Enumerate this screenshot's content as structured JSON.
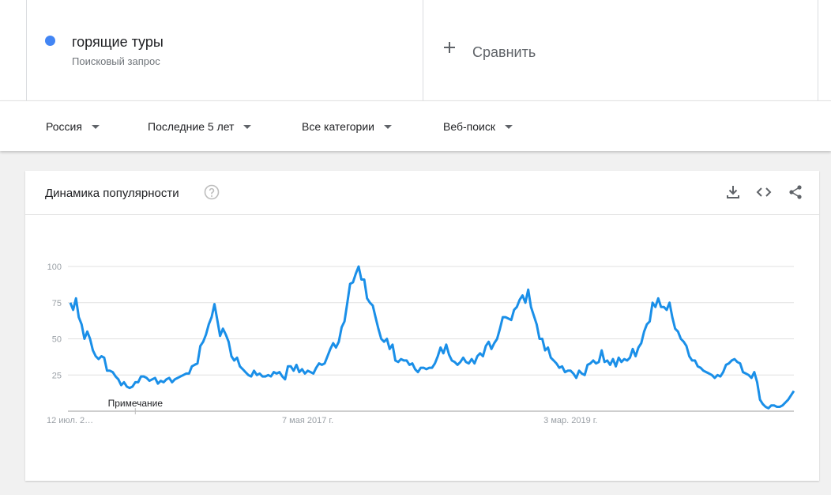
{
  "term": {
    "name": "горящие туры",
    "type": "Поисковый запрос",
    "color": "#4285f4"
  },
  "compare": {
    "label": "Сравнить",
    "icon": "plus-icon"
  },
  "filters": [
    {
      "label": "Россия",
      "icon": "caret-down-icon"
    },
    {
      "label": "Последние 5 лет",
      "icon": "caret-down-icon"
    },
    {
      "label": "Все категории",
      "icon": "caret-down-icon"
    },
    {
      "label": "Веб-поиск",
      "icon": "caret-down-icon"
    }
  ],
  "card": {
    "title": "Динамика популярности",
    "icons": [
      "help-icon",
      "download-icon",
      "embed-icon",
      "share-icon"
    ]
  },
  "annotation": {
    "label": "Примечание"
  },
  "chart_data": {
    "type": "line",
    "title": "",
    "xlabel": "",
    "ylabel": "",
    "x_tick_labels": [
      "12 июл. 2…",
      "7 мая 2017 г.",
      "3 мар. 2019 г."
    ],
    "y_ticks": [
      25,
      50,
      75,
      100
    ],
    "ylim": [
      0,
      100
    ],
    "grid": true,
    "line_color": "#1a8fe8",
    "x_start": "2015-07-12",
    "x_end": "2020-06-28",
    "series": [
      {
        "values": [
          75,
          70,
          78,
          65,
          60,
          50,
          55,
          50,
          42,
          38,
          36,
          38,
          37,
          28,
          28,
          27,
          24,
          22,
          18,
          20,
          17,
          16,
          17,
          20,
          20,
          24,
          24,
          23,
          21,
          22,
          23,
          19,
          21,
          20,
          22,
          23,
          20,
          22,
          23,
          24,
          25,
          26,
          26,
          31,
          32,
          33,
          45,
          48,
          53,
          60,
          65,
          74,
          63,
          52,
          57,
          53,
          48,
          38,
          35,
          37,
          31,
          29,
          27,
          25,
          24,
          28,
          25,
          26,
          24,
          24,
          25,
          24,
          27,
          26,
          27,
          24,
          22,
          31,
          31,
          28,
          32,
          27,
          29,
          26,
          28,
          27,
          26,
          30,
          33,
          32,
          33,
          38,
          43,
          47,
          44,
          48,
          58,
          62,
          75,
          88,
          89,
          95,
          100,
          91,
          91,
          78,
          75,
          73,
          65,
          57,
          50,
          48,
          50,
          43,
          46,
          35,
          34,
          36,
          35,
          35,
          32,
          33,
          29,
          27,
          30,
          30,
          29,
          30,
          30,
          33,
          38,
          44,
          40,
          46,
          39,
          35,
          34,
          32,
          34,
          37,
          34,
          33,
          36,
          33,
          38,
          40,
          38,
          45,
          48,
          43,
          47,
          50,
          57,
          65,
          65,
          64,
          63,
          70,
          72,
          77,
          80,
          75,
          84,
          72,
          66,
          60,
          50,
          50,
          42,
          44,
          37,
          35,
          33,
          30,
          31,
          27,
          28,
          28,
          26,
          23,
          28,
          26,
          25,
          32,
          33,
          35,
          33,
          34,
          42,
          34,
          35,
          32,
          36,
          31,
          37,
          34,
          36,
          35,
          37,
          43,
          38,
          44,
          47,
          55,
          60,
          62,
          75,
          72,
          78,
          72,
          72,
          70,
          75,
          65,
          57,
          55,
          50,
          48,
          45,
          38,
          35,
          35,
          31,
          30,
          28,
          27,
          26,
          25,
          23,
          25,
          24,
          27,
          32,
          33,
          35,
          36,
          34,
          33,
          27,
          26,
          25,
          23,
          27,
          20,
          8,
          5,
          3,
          2,
          4,
          4,
          3,
          3,
          4,
          6,
          8,
          11,
          14
        ]
      }
    ]
  }
}
